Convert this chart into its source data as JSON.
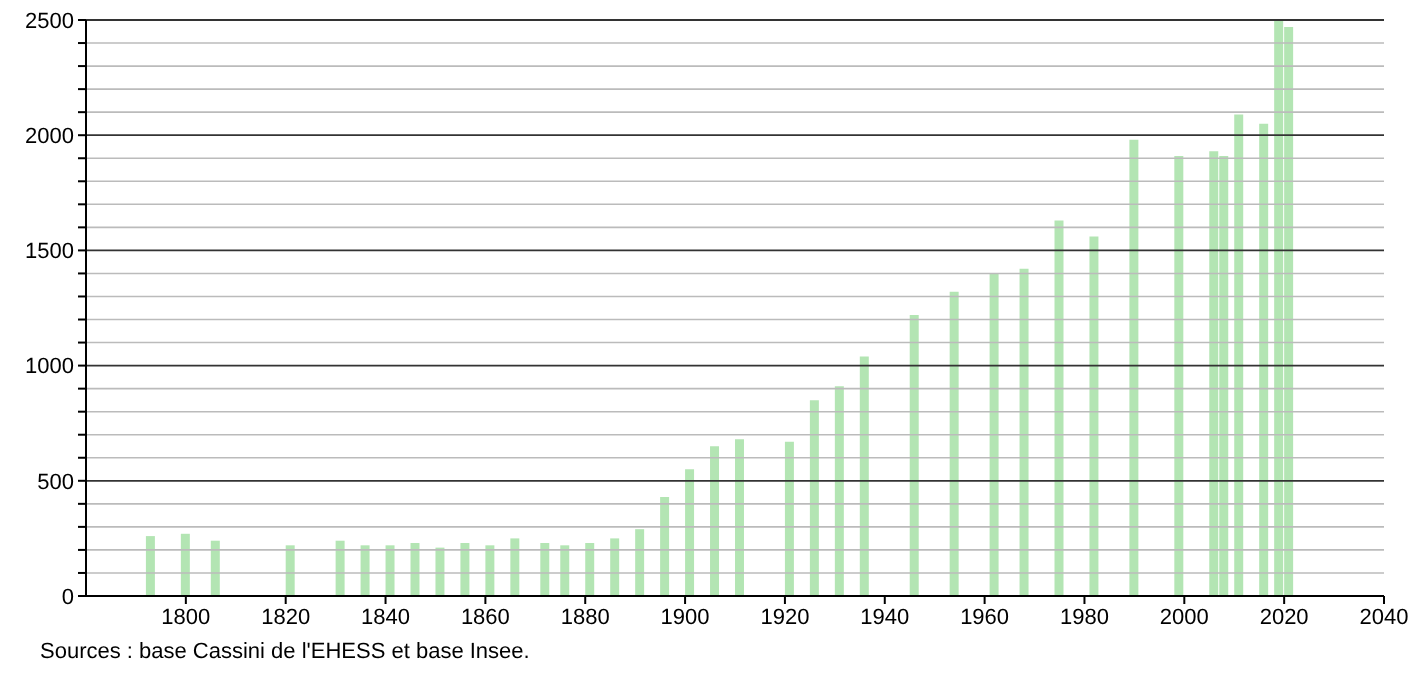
{
  "chart_data": {
    "type": "bar",
    "x": [
      1793,
      1800,
      1806,
      1821,
      1831,
      1836,
      1841,
      1846,
      1851,
      1856,
      1861,
      1866,
      1872,
      1876,
      1881,
      1886,
      1891,
      1896,
      1901,
      1906,
      1911,
      1921,
      1926,
      1931,
      1936,
      1946,
      1954,
      1962,
      1968,
      1975,
      1982,
      1990,
      1999,
      2006,
      2008,
      2011,
      2016,
      2019,
      2021
    ],
    "values": [
      260,
      270,
      240,
      220,
      240,
      220,
      220,
      230,
      210,
      230,
      220,
      250,
      230,
      220,
      230,
      250,
      290,
      430,
      550,
      650,
      680,
      670,
      850,
      910,
      1040,
      1220,
      1320,
      1400,
      1420,
      1630,
      1560,
      1980,
      1910,
      1930,
      1910,
      2090,
      2050,
      2500,
      2470
    ],
    "color": "#b3e5b3",
    "xlim": [
      1780,
      2040
    ],
    "xticks": [
      1800,
      1820,
      1840,
      1860,
      1880,
      1900,
      1920,
      1940,
      1960,
      1980,
      2000,
      2020,
      2040
    ],
    "ylim": [
      0,
      2500
    ],
    "yticks": [
      0,
      {
        "value": 100,
        "label": null
      },
      {
        "value": 200,
        "label": null
      },
      {
        "value": 300,
        "label": null
      },
      {
        "value": 400,
        "label": null
      },
      500,
      {
        "value": 600,
        "label": null
      },
      {
        "value": 700,
        "label": null
      },
      {
        "value": 800,
        "label": null
      },
      {
        "value": 900,
        "label": null
      },
      1000,
      {
        "value": 1100,
        "label": null
      },
      {
        "value": 1200,
        "label": null
      },
      {
        "value": 1300,
        "label": null
      },
      {
        "value": 1400,
        "label": null
      },
      1500,
      {
        "value": 1600,
        "label": null
      },
      {
        "value": 1700,
        "label": null
      },
      {
        "value": 1800,
        "label": null
      },
      {
        "value": 1900,
        "label": null
      },
      2000,
      {
        "value": 2100,
        "label": null
      },
      {
        "value": 2200,
        "label": null
      },
      {
        "value": 2300,
        "label": null
      },
      {
        "value": 2400,
        "label": null
      },
      2500
    ],
    "grid": "y",
    "annotations": [
      "Sources : base Cassini de l'EHESS et base Insee."
    ]
  }
}
